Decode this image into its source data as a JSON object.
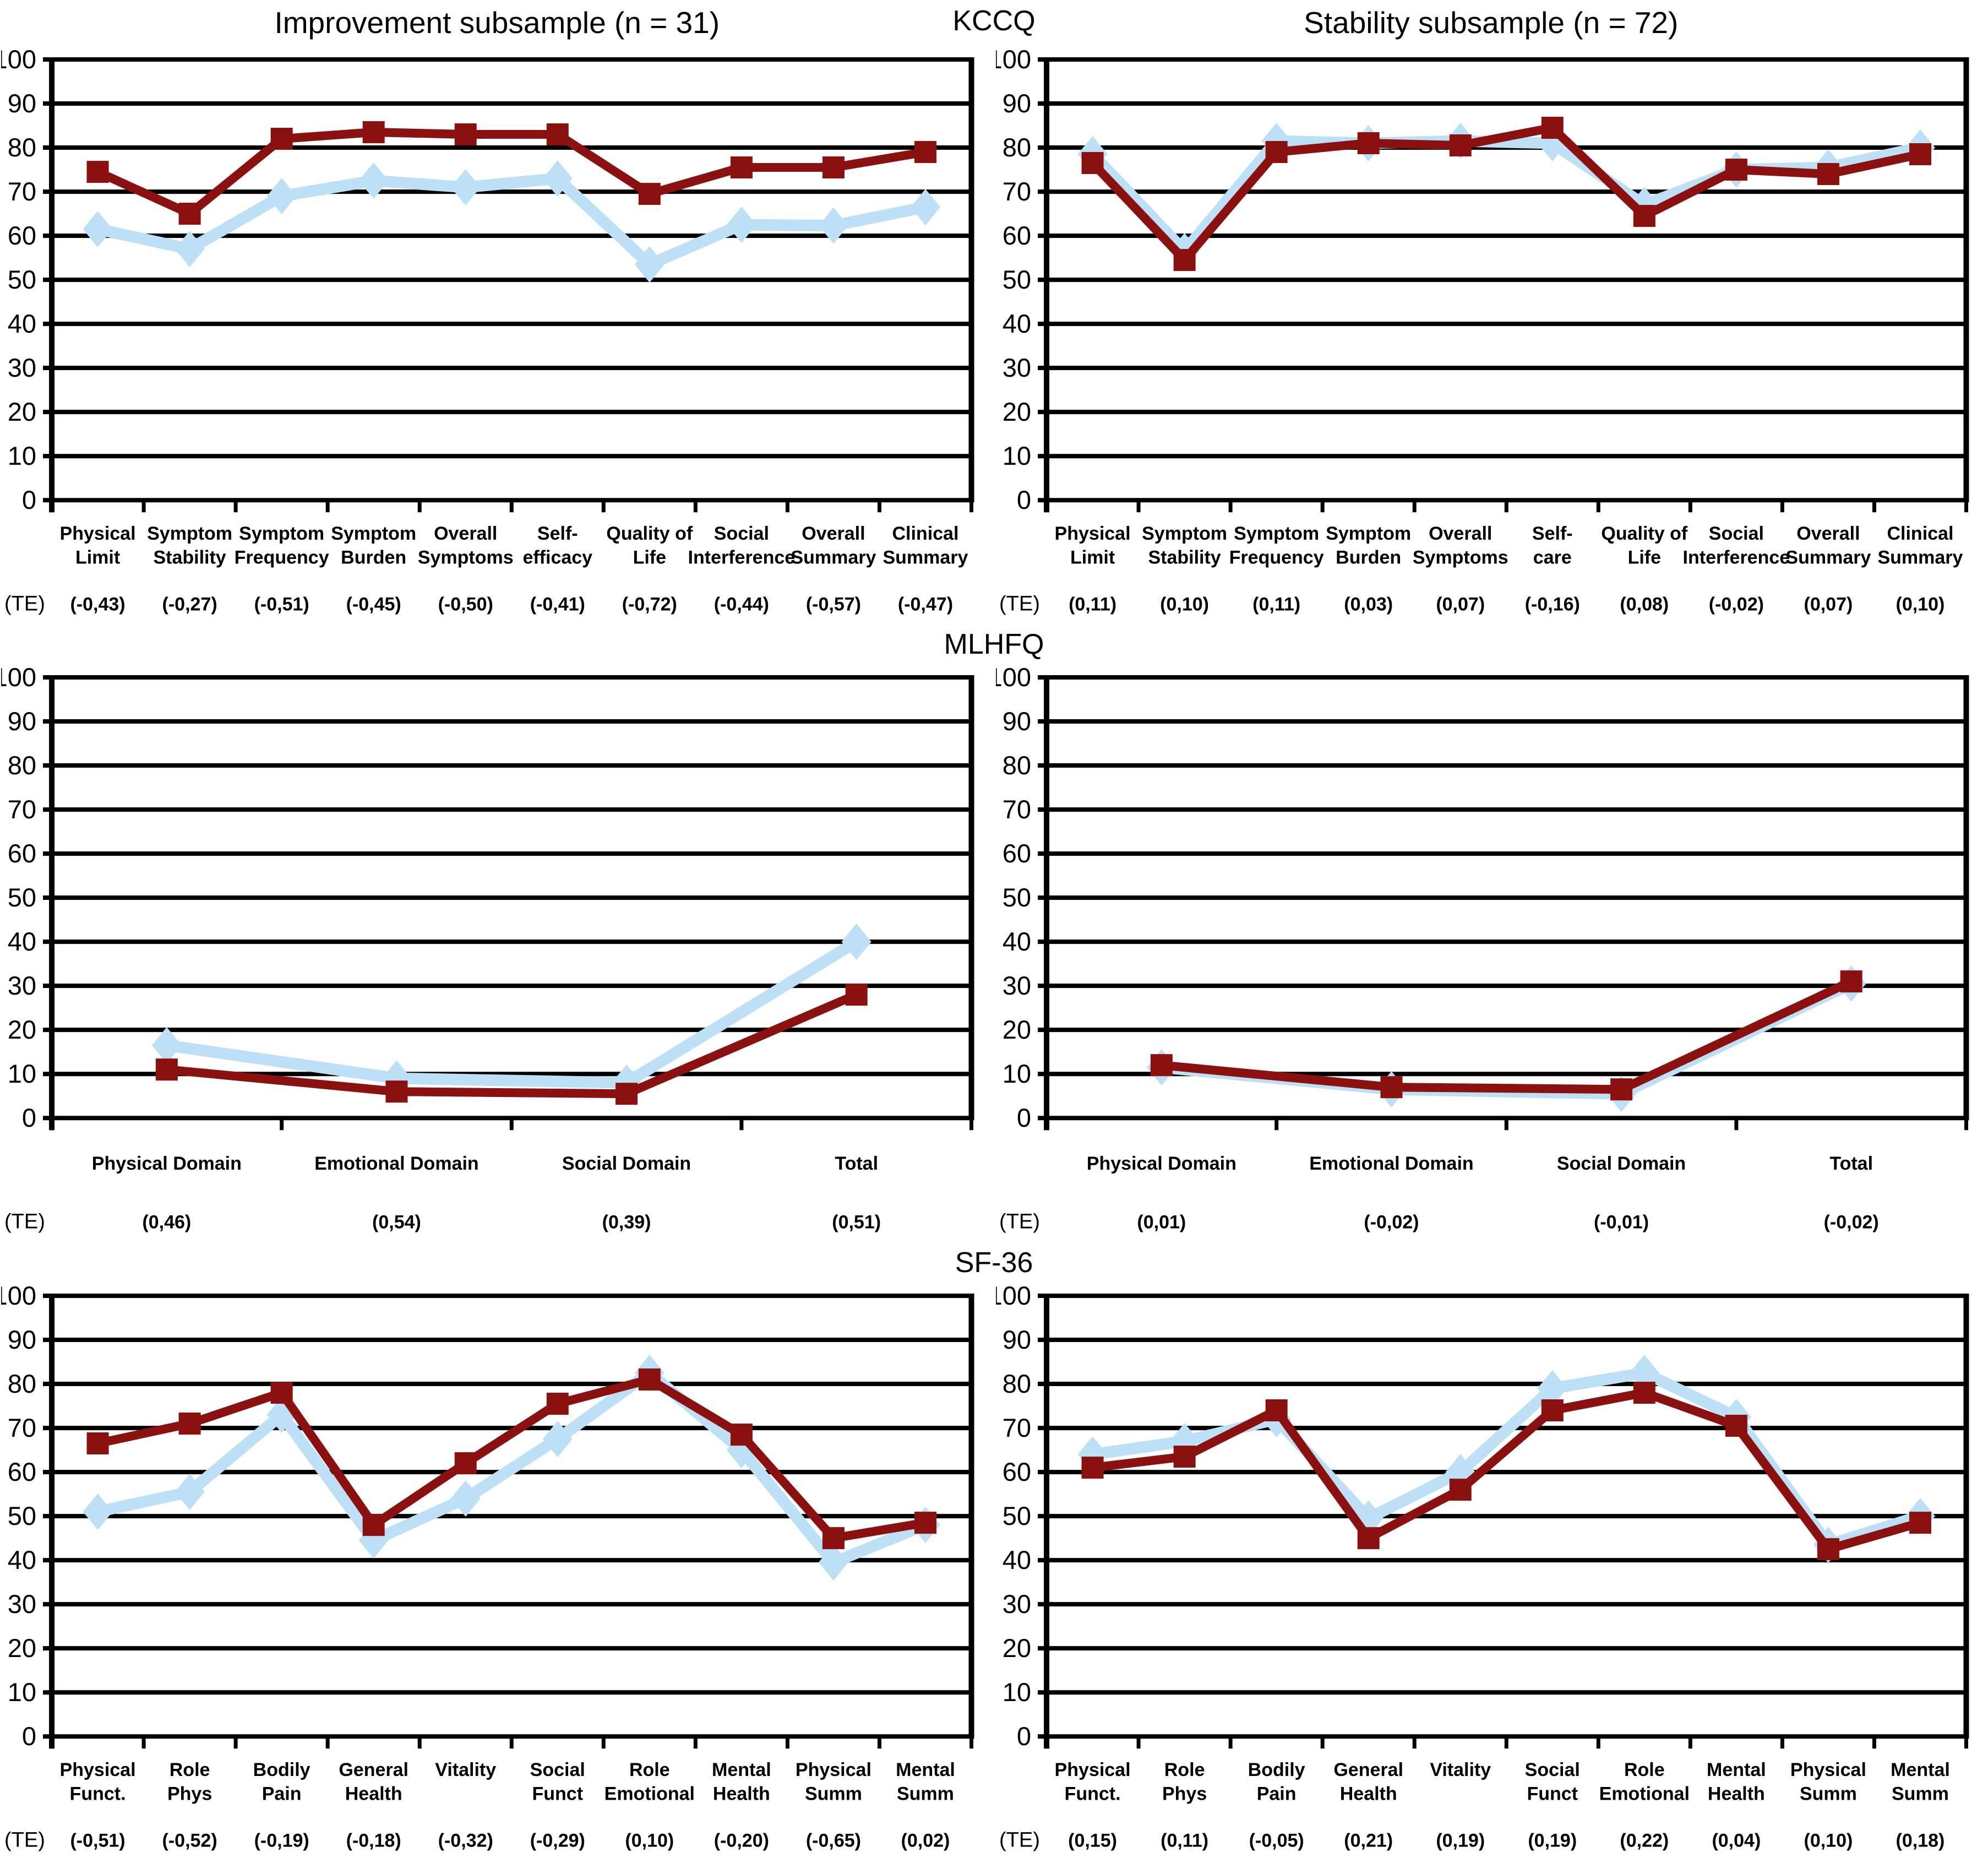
{
  "page": {
    "te_label": "(TE)"
  },
  "column_titles": [
    "Improvement subsample (n = 31)",
    "Stability subsample (n = 72)"
  ],
  "sections": [
    {
      "header": "KCCQ"
    },
    {
      "header": "MLHFQ"
    },
    {
      "header": "SF-36"
    }
  ],
  "colors": {
    "series_blue": "#BDE0F6",
    "series_red": "#8B1010",
    "grid": "#000000"
  },
  "chart_data": [
    {
      "type": "line",
      "section": "KCCQ",
      "subsample_title": "Improvement subsample (n = 31)",
      "ylim": [
        0,
        100
      ],
      "ytick_step": 10,
      "grid": true,
      "legend": "none",
      "categories": [
        [
          "Physical",
          "Limit"
        ],
        [
          "Symptom",
          "Stability"
        ],
        [
          "Symptom",
          "Frequency"
        ],
        [
          "Symptom",
          "Burden"
        ],
        [
          "Overall",
          "Symptoms"
        ],
        [
          "Self-",
          "efficacy"
        ],
        [
          "Quality of",
          "Life"
        ],
        [
          "Social",
          "Interference"
        ],
        [
          "Overall",
          "Summary"
        ],
        [
          "Clinical",
          "Summary"
        ]
      ],
      "series": [
        {
          "name": "light-blue-diamond",
          "marker": "diamond",
          "color": "#BDE0F6",
          "values": [
            61.5,
            57,
            69,
            72.5,
            71,
            73,
            53.5,
            62.5,
            62.3,
            66.5
          ]
        },
        {
          "name": "dark-red-square",
          "marker": "square",
          "color": "#8B1010",
          "values": [
            74.5,
            65,
            82,
            83.5,
            83,
            83,
            69.5,
            75.5,
            75.5,
            79
          ]
        }
      ],
      "te_label": "(TE)",
      "te": [
        "(-0,43)",
        "(-0,27)",
        "(-0,51)",
        "(-0,45)",
        "(-0,50)",
        "(-0,41)",
        "(-0,72)",
        "(-0,44)",
        "(-0,57)",
        "(-0,47)"
      ]
    },
    {
      "type": "line",
      "section": "KCCQ",
      "subsample_title": "Stability subsample (n = 72)",
      "ylim": [
        0,
        100
      ],
      "ytick_step": 10,
      "grid": true,
      "legend": "none",
      "categories": [
        [
          "Physical",
          "Limit"
        ],
        [
          "Symptom",
          "Stability"
        ],
        [
          "Symptom",
          "Frequency"
        ],
        [
          "Symptom",
          "Burden"
        ],
        [
          "Overall",
          "Symptoms"
        ],
        [
          "Self-",
          "care"
        ],
        [
          "Quality of",
          "Life"
        ],
        [
          "Social",
          "Interference"
        ],
        [
          "Overall",
          "Summary"
        ],
        [
          "Clinical",
          "Summary"
        ]
      ],
      "series": [
        {
          "name": "light-blue-diamond",
          "marker": "diamond",
          "color": "#BDE0F6",
          "values": [
            78.5,
            56.5,
            81.5,
            81,
            81.5,
            81,
            67,
            75,
            75.5,
            80
          ]
        },
        {
          "name": "dark-red-square",
          "marker": "square",
          "color": "#8B1010",
          "values": [
            76.5,
            54.5,
            79,
            81,
            80.5,
            84.5,
            64.5,
            75,
            74,
            78.5
          ]
        }
      ],
      "te_label": "(TE)",
      "te": [
        "(0,11)",
        "(0,10)",
        "(0,11)",
        "(0,03)",
        "(0,07)",
        "(-0,16)",
        "(0,08)",
        "(-0,02)",
        "(0,07)",
        "(0,10)"
      ]
    },
    {
      "type": "line",
      "section": "MLHFQ",
      "subsample_title": "",
      "ylim": [
        0,
        100
      ],
      "ytick_step": 10,
      "grid": true,
      "legend": "none",
      "categories": [
        [
          "Physical Domain"
        ],
        [
          "Emotional Domain"
        ],
        [
          "Social Domain"
        ],
        [
          "Total"
        ]
      ],
      "series": [
        {
          "name": "light-blue-diamond",
          "marker": "diamond",
          "color": "#BDE0F6",
          "values": [
            16.5,
            9,
            8,
            40
          ]
        },
        {
          "name": "dark-red-square",
          "marker": "square",
          "color": "#8B1010",
          "values": [
            11,
            6,
            5.5,
            28
          ]
        }
      ],
      "te_label": "(TE)",
      "te": [
        "(0,46)",
        "(0,54)",
        "(0,39)",
        "(0,51)"
      ]
    },
    {
      "type": "line",
      "section": "MLHFQ",
      "subsample_title": "",
      "ylim": [
        0,
        100
      ],
      "ytick_step": 10,
      "grid": true,
      "legend": "none",
      "categories": [
        [
          "Physical Domain"
        ],
        [
          "Emotional Domain"
        ],
        [
          "Social Domain"
        ],
        [
          "Total"
        ]
      ],
      "series": [
        {
          "name": "light-blue-diamond",
          "marker": "diamond",
          "color": "#BDE0F6",
          "values": [
            11.5,
            6.5,
            5.5,
            30.5
          ]
        },
        {
          "name": "dark-red-square",
          "marker": "square",
          "color": "#8B1010",
          "values": [
            12,
            7,
            6.5,
            31
          ]
        }
      ],
      "te_label": "(TE)",
      "te": [
        "(0,01)",
        "(-0,02)",
        "(-0,01)",
        "(-0,02)"
      ]
    },
    {
      "type": "line",
      "section": "SF-36",
      "subsample_title": "",
      "ylim": [
        0,
        100
      ],
      "ytick_step": 10,
      "grid": true,
      "legend": "none",
      "categories": [
        [
          "Physical",
          "Funct."
        ],
        [
          "Role",
          "Phys"
        ],
        [
          "Bodily",
          "Pain"
        ],
        [
          "General",
          "Health"
        ],
        [
          "Vitality"
        ],
        [
          "Social",
          "Funct"
        ],
        [
          "Role",
          "Emotional"
        ],
        [
          "Mental",
          "Health"
        ],
        [
          "Physical",
          "Summ"
        ],
        [
          "Mental",
          "Summ"
        ]
      ],
      "series": [
        {
          "name": "light-blue-diamond",
          "marker": "diamond",
          "color": "#BDE0F6",
          "values": [
            51,
            55.5,
            73,
            44.5,
            54,
            67.5,
            82.5,
            65,
            39.5,
            48
          ]
        },
        {
          "name": "dark-red-square",
          "marker": "square",
          "color": "#8B1010",
          "values": [
            66.5,
            71,
            78,
            48,
            62,
            75.5,
            81,
            68.5,
            45,
            48.5
          ]
        }
      ],
      "te_label": "(TE)",
      "te": [
        "(-0,51)",
        "(-0,52)",
        "(-0,19)",
        "(-0,18)",
        "(-0,32)",
        "(-0,29)",
        "(0,10)",
        "(-0,20)",
        "(-0,65)",
        "(0,02)"
      ]
    },
    {
      "type": "line",
      "section": "SF-36",
      "subsample_title": "",
      "ylim": [
        0,
        100
      ],
      "ytick_step": 10,
      "grid": true,
      "legend": "none",
      "categories": [
        [
          "Physical",
          "Funct."
        ],
        [
          "Role",
          "Phys"
        ],
        [
          "Bodily",
          "Pain"
        ],
        [
          "General",
          "Health"
        ],
        [
          "Vitality"
        ],
        [
          "Social",
          "Funct"
        ],
        [
          "Role",
          "Emotional"
        ],
        [
          "Mental",
          "Health"
        ],
        [
          "Physical",
          "Summ"
        ],
        [
          "Mental",
          "Summ"
        ]
      ],
      "series": [
        {
          "name": "light-blue-diamond",
          "marker": "diamond",
          "color": "#BDE0F6",
          "values": [
            64,
            67,
            72,
            49.5,
            60,
            79,
            82.5,
            72.5,
            43.5,
            50
          ]
        },
        {
          "name": "dark-red-square",
          "marker": "square",
          "color": "#8B1010",
          "values": [
            61,
            63.5,
            74,
            45,
            56,
            74,
            78,
            70.5,
            42.5,
            48.5
          ]
        }
      ],
      "te_label": "(TE)",
      "te": [
        "(0,15)",
        "(0,11)",
        "(-0,05)",
        "(0,21)",
        "(0,19)",
        "(0,19)",
        "(0,22)",
        "(0,04)",
        "(0,10)",
        "(0,18)"
      ]
    }
  ]
}
